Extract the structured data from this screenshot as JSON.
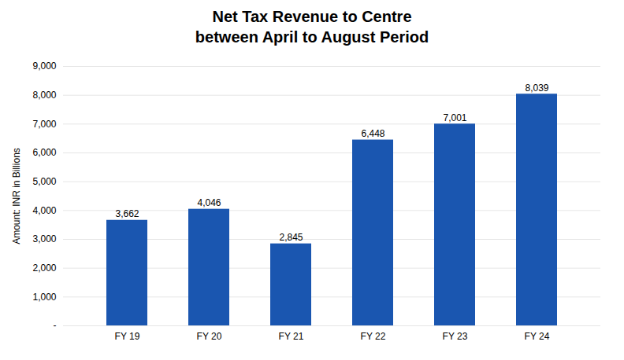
{
  "chart_data": {
    "type": "bar",
    "title": "Net Tax Revenue to Centre",
    "subtitle": "between April to August Period",
    "categories": [
      "FY 19",
      "FY 20",
      "FY 21",
      "FY 22",
      "FY 23",
      "FY 24"
    ],
    "values": [
      3662,
      4046,
      2845,
      6448,
      7001,
      8039
    ],
    "value_labels": [
      "3,662",
      "4,046",
      "2,845",
      "6,448",
      "7,001",
      "8,039"
    ],
    "data_labels": true,
    "color": "#1A56B0",
    "ylabel": "Amount: INR in Billions",
    "ylim": [
      0,
      9000
    ],
    "yticks": [
      {
        "value": 0,
        "label": "-"
      },
      {
        "value": 1000,
        "label": "1,000"
      },
      {
        "value": 2000,
        "label": "2,000"
      },
      {
        "value": 3000,
        "label": "3,000"
      },
      {
        "value": 4000,
        "label": "4,000"
      },
      {
        "value": 5000,
        "label": "5,000"
      },
      {
        "value": 6000,
        "label": "6,000"
      },
      {
        "value": 7000,
        "label": "7,000"
      },
      {
        "value": 8000,
        "label": "8,000"
      },
      {
        "value": 9000,
        "label": "9,000"
      }
    ],
    "grid": true
  }
}
